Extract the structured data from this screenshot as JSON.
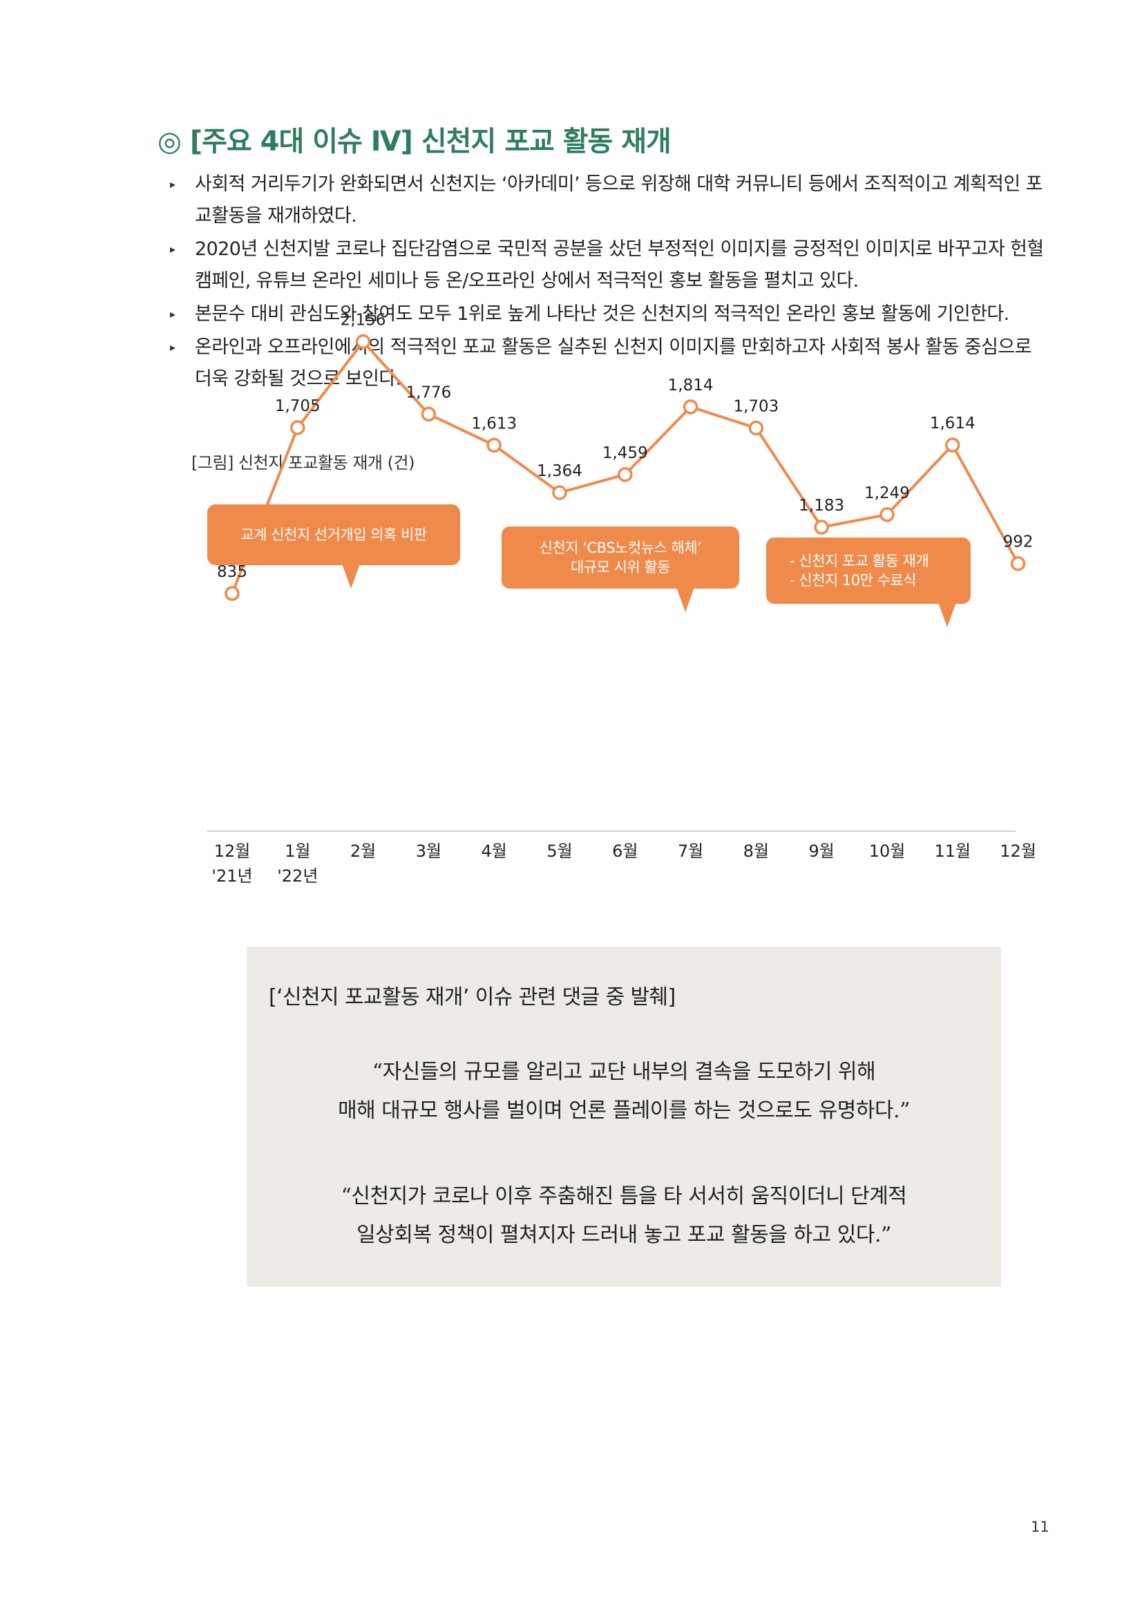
{
  "section": {
    "title": "◎ [주요 4대 이슈 Ⅳ] 신천지 포교 활동 재개"
  },
  "bullet_marker": "▸",
  "bullets": [
    "사회적 거리두기가 완화되면서 신천지는 ‘아카데미’ 등으로 위장해 대학 커뮤니티 등에서 조직적이고 계획적인 포교활동을 재개하였다.",
    "2020년 신천지발 코로나 집단감염으로 국민적 공분을 샀던 부정적인 이미지를 긍정적인 이미지로 바꾸고자 헌혈 캠페인, 유튜브 온라인 세미나 등 온/오프라인 상에서 적극적인 홍보 활동을 펼치고 있다.",
    "본문수 대비 관심도와 참여도 모두 1위로 높게 나타난 것은 신천지의 적극적인 온라인 홍보 활동에 기인한다.",
    "온라인과 오프라인에서의 적극적인 포교 활동은 실추된 신천지 이미지를 만회하고자 사회적 봉사 활동 중심으로 더욱 강화될 것으로 보인다."
  ],
  "figure_caption": "[그림] 신천지 포교활동 재개 (건)",
  "chart_data": {
    "type": "line",
    "title": "",
    "categories": [
      "12월",
      "1월",
      "2월",
      "3월",
      "4월",
      "5월",
      "6월",
      "7월",
      "8월",
      "9월",
      "10월",
      "11월",
      "12월"
    ],
    "year_labels": [
      "'21년",
      "'22년"
    ],
    "values": [
      835,
      1705,
      2156,
      1776,
      1613,
      1364,
      1459,
      1814,
      1703,
      1183,
      1249,
      1614,
      992
    ],
    "value_labels": [
      "835",
      "1,705",
      "2,156",
      "1,776",
      "1,613",
      "1,364",
      "1,459",
      "1,814",
      "1,703",
      "1,183",
      "1,249",
      "1,614",
      "992"
    ],
    "line_color": "#f08a4b",
    "grid": false,
    "annotations": [
      {
        "target": "2월",
        "lines": [
          "교계 신천지 선거개입 의혹 비판"
        ]
      },
      {
        "target": "7월",
        "lines": [
          "신천지 ‘CBS노컷뉴스 해체’",
          "대규모 시위 활동"
        ]
      },
      {
        "target": "11월",
        "lines": [
          "- 신천지 포교 활동 재개",
          "- 신천지 10만 수료식"
        ]
      }
    ]
  },
  "quote_box": {
    "heading": "[‘신천지 포교활동 재개’ 이슈 관련 댓글 중 발췌]",
    "quotes": [
      [
        "“자신들의 규모를 알리고 교단 내부의 결속을 도모하기 위해",
        "매해 대규모 행사를 벌이며 언론 플레이를 하는 것으로도 유명하다.”"
      ],
      [
        "“신천지가 코로나 이후 주춤해진 틈을 타 서서히 움직이더니 단계적",
        "일상회복 정책이 펼쳐지자 드러내 놓고 포교 활동을 하고 있다.”"
      ]
    ],
    "background": "#eeebe7"
  },
  "page_number": "11"
}
